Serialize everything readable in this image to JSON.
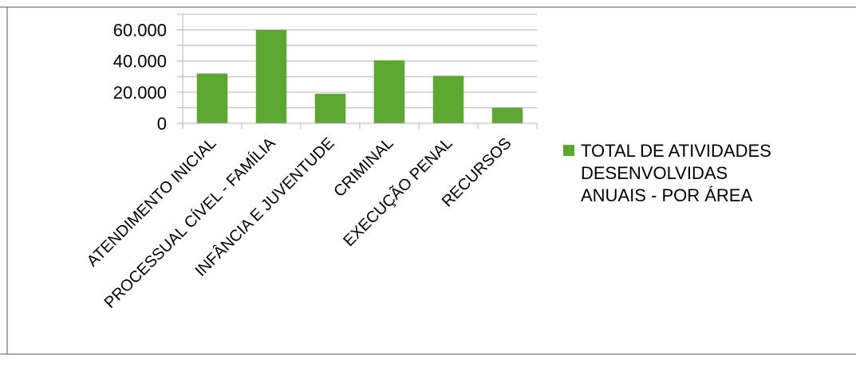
{
  "chart_data": {
    "type": "bar",
    "categories": [
      "ATENDIMENTO INICIAL",
      "PROCESSUAL CÍVEL - FAMÍLIA",
      "INFÂNCIA E JUVENTUDE",
      "CRIMINAL",
      "EXECUÇÃO PENAL",
      "RECURSOS"
    ],
    "series": [
      {
        "name": "TOTAL DE ATIVIDADES DESENVOLVIDAS ANUAIS - POR ÁREA",
        "legend_lines": [
          "TOTAL DE ATIVIDADES",
          "DESENVOLVIDAS",
          "ANUAIS - POR ÁREA"
        ],
        "values": [
          32000,
          60000,
          19000,
          40500,
          30500,
          10000
        ],
        "color": "#5ba732"
      }
    ],
    "yticks": [
      {
        "value": 0,
        "label": "0"
      },
      {
        "value": 20000,
        "label": "20.000"
      },
      {
        "value": 40000,
        "label": "40.000"
      },
      {
        "value": 60000,
        "label": "60.000"
      }
    ],
    "ylim": [
      0,
      70000
    ],
    "minor_step": 10000,
    "grid": true,
    "legend_position": "right",
    "title": "",
    "xlabel": "",
    "ylabel": ""
  }
}
